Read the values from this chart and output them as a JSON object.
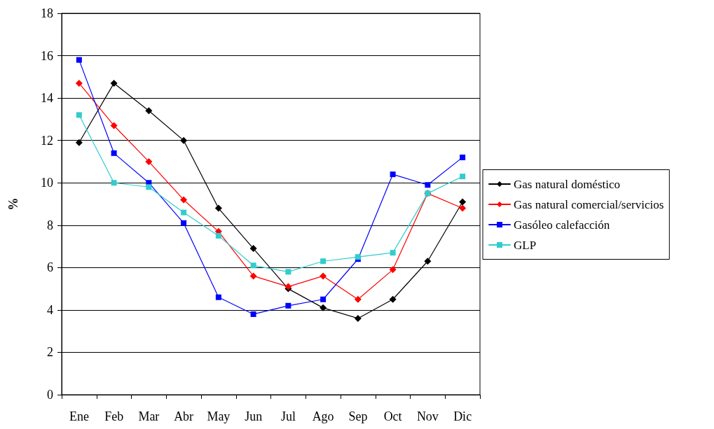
{
  "chart_data": {
    "type": "line",
    "ylabel": "%",
    "categories": [
      "Ene",
      "Feb",
      "Mar",
      "Abr",
      "May",
      "Jun",
      "Jul",
      "Ago",
      "Sep",
      "Oct",
      "Nov",
      "Dic"
    ],
    "ylim": [
      0,
      18
    ],
    "yticks": [
      0,
      2,
      4,
      6,
      8,
      10,
      12,
      14,
      16,
      18
    ],
    "grid": "y",
    "legend": "right",
    "line_style": "solid",
    "series": [
      {
        "name": "Gas natural doméstico",
        "color": "#000000",
        "marker": "diamond",
        "values": [
          11.9,
          14.7,
          13.4,
          12.0,
          8.8,
          6.9,
          5.0,
          4.1,
          3.6,
          4.5,
          6.3,
          9.1
        ]
      },
      {
        "name": "Gas natural comercial/servicios",
        "color": "#ff0000",
        "marker": "diamond",
        "values": [
          14.7,
          12.7,
          11.0,
          9.2,
          7.7,
          5.6,
          5.1,
          5.6,
          4.5,
          5.9,
          9.5,
          8.8
        ]
      },
      {
        "name": "Gasóleo calefacción",
        "color": "#0000ff",
        "marker": "square",
        "values": [
          15.8,
          11.4,
          10.0,
          8.1,
          4.6,
          3.8,
          4.2,
          4.5,
          6.4,
          10.4,
          9.9,
          11.2
        ]
      },
      {
        "name": "GLP",
        "color": "#33cccc",
        "marker": "square",
        "values": [
          13.2,
          10.0,
          9.8,
          8.6,
          7.5,
          6.1,
          5.8,
          6.3,
          6.5,
          6.7,
          9.5,
          10.3
        ]
      }
    ]
  }
}
